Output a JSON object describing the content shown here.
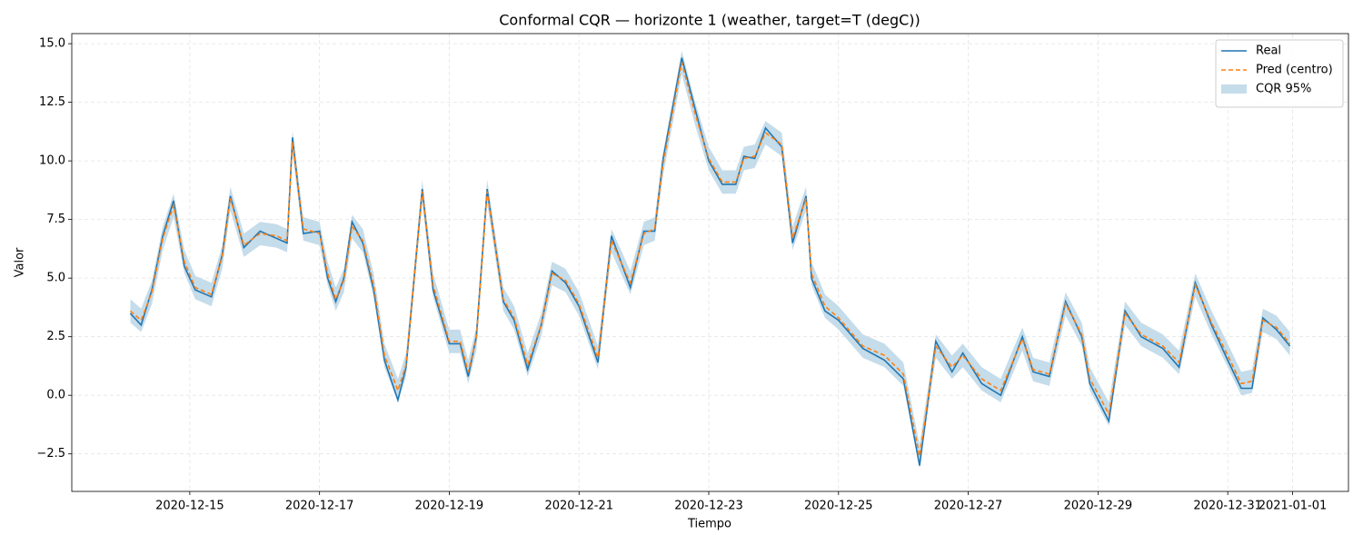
{
  "chart_data": {
    "type": "line",
    "title": "Conformal CQR — horizonte 1 (weather, target=T (degC))",
    "xlabel": "Tiempo",
    "ylabel": "Valor",
    "x": [
      "2020-12-14T02:00",
      "2020-12-14T06:00",
      "2020-12-14T10:00",
      "2020-12-14T14:00",
      "2020-12-14T18:00",
      "2020-12-14T22:00",
      "2020-12-15T02:00",
      "2020-12-15T08:00",
      "2020-12-15T12:00",
      "2020-12-15T15:00",
      "2020-12-15T20:00",
      "2020-12-16T02:00",
      "2020-12-16T08:00",
      "2020-12-16T12:00",
      "2020-12-16T14:00",
      "2020-12-16T18:00",
      "2020-12-17T00:00",
      "2020-12-17T03:00",
      "2020-12-17T06:00",
      "2020-12-17T09:00",
      "2020-12-17T12:00",
      "2020-12-17T16:00",
      "2020-12-17T20:00",
      "2020-12-18T00:00",
      "2020-12-18T05:00",
      "2020-12-18T08:00",
      "2020-12-18T14:00",
      "2020-12-18T18:00",
      "2020-12-19T00:00",
      "2020-12-19T04:00",
      "2020-12-19T07:00",
      "2020-12-19T10:00",
      "2020-12-19T14:00",
      "2020-12-19T20:00",
      "2020-12-20T00:00",
      "2020-12-20T05:00",
      "2020-12-20T10:00",
      "2020-12-20T14:00",
      "2020-12-20T19:00",
      "2020-12-21T00:00",
      "2020-12-21T07:00",
      "2020-12-21T12:00",
      "2020-12-21T19:00",
      "2020-12-22T00:00",
      "2020-12-22T04:00",
      "2020-12-22T07:00",
      "2020-12-22T14:00",
      "2020-12-22T19:00",
      "2020-12-23T00:00",
      "2020-12-23T05:00",
      "2020-12-23T10:00",
      "2020-12-23T13:00",
      "2020-12-23T17:00",
      "2020-12-23T21:00",
      "2020-12-24T03:00",
      "2020-12-24T07:00",
      "2020-12-24T12:00",
      "2020-12-24T14:00",
      "2020-12-24T19:00",
      "2020-12-25T00:00",
      "2020-12-25T09:00",
      "2020-12-25T17:00",
      "2020-12-26T00:00",
      "2020-12-26T06:00",
      "2020-12-26T12:00",
      "2020-12-26T18:00",
      "2020-12-26T22:00",
      "2020-12-27T05:00",
      "2020-12-27T12:00",
      "2020-12-27T20:00",
      "2020-12-28T00:00",
      "2020-12-28T06:00",
      "2020-12-28T12:00",
      "2020-12-28T18:00",
      "2020-12-28T21:00",
      "2020-12-29T04:00",
      "2020-12-29T10:00",
      "2020-12-29T16:00",
      "2020-12-30T00:00",
      "2020-12-30T06:00",
      "2020-12-30T12:00",
      "2020-12-30T18:00",
      "2020-12-31T00:00",
      "2020-12-31T05:00",
      "2020-12-31T09:00",
      "2020-12-31T13:00",
      "2020-12-31T18:00",
      "2020-12-31T23:00"
    ],
    "series": [
      {
        "name": "Real",
        "color": "#1f77b4",
        "style": "solid",
        "values": [
          3.5,
          3.0,
          4.5,
          6.8,
          8.3,
          5.5,
          4.5,
          4.2,
          6.0,
          8.5,
          6.3,
          7.0,
          6.7,
          6.5,
          11.0,
          6.9,
          7.0,
          5.0,
          4.0,
          5.0,
          7.4,
          6.5,
          4.5,
          1.5,
          -0.2,
          1.2,
          8.8,
          4.5,
          2.2,
          2.2,
          0.8,
          2.5,
          8.8,
          4.0,
          3.2,
          1.1,
          3.0,
          5.3,
          4.8,
          3.8,
          1.4,
          6.8,
          4.6,
          7.0,
          7.0,
          10.0,
          14.4,
          12.2,
          10.0,
          9.0,
          9.0,
          10.2,
          10.1,
          11.4,
          10.6,
          6.5,
          8.5,
          5.0,
          3.6,
          3.2,
          2.0,
          1.5,
          0.7,
          -3.0,
          2.3,
          1.0,
          1.8,
          0.5,
          0.0,
          2.5,
          1.0,
          0.8,
          4.0,
          2.5,
          0.5,
          -1.1,
          3.6,
          2.5,
          2.0,
          1.2,
          4.8,
          3.0,
          1.5,
          0.3,
          0.3,
          3.3,
          2.8,
          2.1
        ]
      },
      {
        "name": "Pred (centro)",
        "color": "#ff7f0e",
        "style": "dashed",
        "values": [
          3.6,
          3.2,
          4.4,
          6.7,
          8.1,
          5.7,
          4.6,
          4.3,
          5.9,
          8.4,
          6.4,
          6.9,
          6.8,
          6.6,
          10.8,
          7.1,
          6.9,
          5.2,
          4.1,
          4.9,
          7.2,
          6.6,
          4.7,
          1.7,
          0.2,
          1.3,
          8.7,
          4.7,
          2.3,
          2.3,
          1.0,
          2.4,
          8.7,
          4.1,
          3.3,
          1.3,
          3.0,
          5.2,
          4.9,
          3.9,
          1.6,
          6.6,
          4.8,
          6.9,
          7.1,
          9.8,
          14.2,
          12.0,
          10.1,
          9.1,
          9.1,
          10.1,
          10.2,
          11.2,
          10.7,
          6.7,
          8.4,
          5.2,
          3.8,
          3.3,
          2.1,
          1.7,
          0.9,
          -2.6,
          2.1,
          1.2,
          1.7,
          0.7,
          0.2,
          2.4,
          1.1,
          0.9,
          3.9,
          2.6,
          0.7,
          -0.8,
          3.5,
          2.6,
          2.1,
          1.4,
          4.7,
          3.1,
          1.7,
          0.5,
          0.6,
          3.2,
          2.9,
          2.2
        ]
      },
      {
        "name": "CQR 95%",
        "color": "#c5dcea",
        "style": "band",
        "lower": [
          3.1,
          2.7,
          3.9,
          6.2,
          7.6,
          5.2,
          4.1,
          3.8,
          5.4,
          7.9,
          5.9,
          6.4,
          6.3,
          6.1,
          10.3,
          6.6,
          6.4,
          4.7,
          3.6,
          4.4,
          6.7,
          6.1,
          4.2,
          1.2,
          -0.3,
          0.8,
          8.2,
          4.2,
          1.8,
          1.8,
          0.5,
          1.9,
          8.2,
          3.6,
          2.8,
          0.8,
          2.5,
          4.7,
          4.4,
          3.4,
          1.1,
          6.1,
          4.3,
          6.4,
          6.6,
          9.3,
          13.7,
          11.5,
          9.6,
          8.6,
          8.6,
          9.6,
          9.7,
          10.7,
          10.2,
          6.2,
          7.9,
          4.7,
          3.3,
          2.8,
          1.6,
          1.2,
          0.4,
          -3.1,
          1.6,
          0.7,
          1.2,
          0.2,
          -0.3,
          1.9,
          0.6,
          0.4,
          3.4,
          2.1,
          0.2,
          -1.3,
          3.0,
          2.1,
          1.6,
          0.9,
          4.2,
          2.6,
          1.2,
          0.0,
          0.1,
          2.7,
          2.4,
          1.7
        ],
        "upper": [
          4.1,
          3.7,
          4.9,
          7.2,
          8.6,
          6.2,
          5.1,
          4.8,
          6.4,
          8.9,
          6.9,
          7.4,
          7.3,
          7.1,
          11.3,
          7.6,
          7.4,
          5.7,
          4.6,
          5.4,
          7.7,
          7.1,
          5.2,
          2.2,
          0.7,
          1.8,
          9.2,
          5.2,
          2.8,
          2.8,
          1.5,
          2.9,
          9.2,
          4.6,
          3.8,
          1.8,
          3.5,
          5.7,
          5.4,
          4.4,
          2.1,
          7.1,
          5.3,
          7.4,
          7.6,
          10.3,
          14.7,
          12.5,
          10.6,
          9.6,
          9.6,
          10.6,
          10.7,
          11.7,
          11.2,
          7.2,
          8.9,
          5.7,
          4.3,
          3.8,
          2.6,
          2.2,
          1.4,
          -2.1,
          2.6,
          1.7,
          2.2,
          1.2,
          0.7,
          2.9,
          1.6,
          1.4,
          4.4,
          3.1,
          1.2,
          -0.3,
          4.0,
          3.1,
          2.6,
          1.9,
          5.2,
          3.6,
          2.2,
          1.0,
          1.1,
          3.7,
          3.4,
          2.7
        ]
      }
    ],
    "xlim": [
      "2020-12-13T04:20",
      "2021-01-01T20:40"
    ],
    "xticks": [
      "2020-12-15",
      "2020-12-17",
      "2020-12-19",
      "2020-12-21",
      "2020-12-23",
      "2020-12-25",
      "2020-12-27",
      "2020-12-29",
      "2020-12-31",
      "2021-01-01"
    ],
    "ylim": [
      -4.1,
      15.43
    ],
    "yticks": [
      {
        "value": -2.5,
        "label": "−2.5"
      },
      {
        "value": 0,
        "label": "0.0"
      },
      2.5,
      {
        "value": 5,
        "label": "5.0"
      },
      7.5,
      {
        "value": 10,
        "label": "10.0"
      },
      12.5,
      {
        "value": 15,
        "label": "15.0"
      }
    ],
    "grid": true,
    "legend": "upper right"
  }
}
